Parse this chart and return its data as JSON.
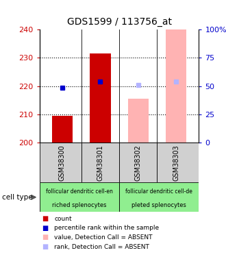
{
  "title": "GDS1599 / 113756_at",
  "samples": [
    "GSM38300",
    "GSM38301",
    "GSM38302",
    "GSM38303"
  ],
  "ylim_left": [
    200,
    240
  ],
  "ylim_right": [
    0,
    100
  ],
  "yticks_left": [
    200,
    210,
    220,
    230,
    240
  ],
  "yticks_right": [
    0,
    25,
    50,
    75,
    100
  ],
  "ytick_labels_right": [
    "0",
    "25",
    "50",
    "75",
    "100%"
  ],
  "bar_values": [
    209.5,
    231.5,
    null,
    null
  ],
  "bar_values_absent": [
    null,
    null,
    215.5,
    240.0
  ],
  "rank_squares_dark": [
    219.5,
    221.5,
    null,
    null
  ],
  "rank_squares_absent": [
    null,
    null,
    220.5,
    221.5
  ],
  "group1_label_line1": "follicular dendritic cell-en",
  "group1_label_line2": "riched splenocytes",
  "group2_label_line1": "follicular dendritic cell-de",
  "group2_label_line2": "pleted splenocytes",
  "group_color": "#90ee90",
  "cell_type_label": "cell type",
  "legend_items": [
    {
      "color": "#cc0000",
      "label": "count"
    },
    {
      "color": "#0000cc",
      "label": "percentile rank within the sample"
    },
    {
      "color": "#ffb3b3",
      "label": "value, Detection Call = ABSENT"
    },
    {
      "color": "#b3b3ff",
      "label": "rank, Detection Call = ABSENT"
    }
  ],
  "bar_width": 0.55,
  "x_positions": [
    0,
    1,
    2,
    3
  ],
  "base_value": 200,
  "grid_lines": [
    210,
    220,
    230
  ],
  "col_sep": [
    0.5,
    1.5,
    2.5
  ],
  "gray_color": "#d0d0d0",
  "dark_red": "#cc0000",
  "light_pink": "#ffb3b3",
  "dark_blue": "#0000cc",
  "light_blue": "#b3b3ff"
}
